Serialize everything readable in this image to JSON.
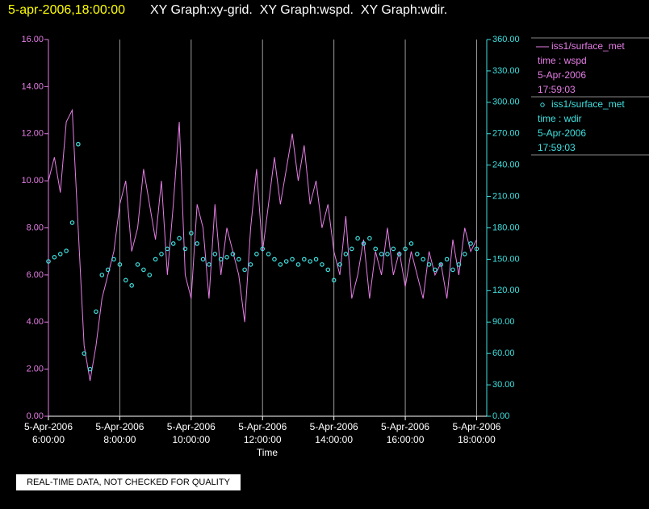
{
  "header": {
    "timestamp": "5-apr-2006,18:00:00",
    "graphs": "XY Graph:xy-grid.  XY Graph:wspd.  XY Graph:wdir."
  },
  "footer": "REAL-TIME DATA, NOT CHECKED FOR QUALITY",
  "chart_data": {
    "type": "line",
    "x_label": "Time",
    "x": [
      "06:00",
      "06:10",
      "06:20",
      "06:30",
      "06:40",
      "06:50",
      "07:00",
      "07:10",
      "07:20",
      "07:30",
      "07:40",
      "07:50",
      "08:00",
      "08:10",
      "08:20",
      "08:30",
      "08:40",
      "08:50",
      "09:00",
      "09:10",
      "09:20",
      "09:30",
      "09:40",
      "09:50",
      "10:00",
      "10:10",
      "10:20",
      "10:30",
      "10:40",
      "10:50",
      "11:00",
      "11:10",
      "11:20",
      "11:30",
      "11:40",
      "11:50",
      "12:00",
      "12:10",
      "12:20",
      "12:30",
      "12:40",
      "12:50",
      "13:00",
      "13:10",
      "13:20",
      "13:30",
      "13:40",
      "13:50",
      "14:00",
      "14:10",
      "14:20",
      "14:30",
      "14:40",
      "14:50",
      "15:00",
      "15:10",
      "15:20",
      "15:30",
      "15:40",
      "15:50",
      "16:00",
      "16:10",
      "16:20",
      "16:30",
      "16:40",
      "16:50",
      "17:00",
      "17:10",
      "17:20",
      "17:30",
      "17:40",
      "17:50",
      "18:00"
    ],
    "xlim": [
      "06:00",
      "18:17"
    ],
    "xticks": [
      {
        "value": "06:00",
        "label": "5-Apr-2006 6:00:00"
      },
      {
        "value": "08:00",
        "label": "5-Apr-2006 8:00:00"
      },
      {
        "value": "10:00",
        "label": "5-Apr-2006 10:00:00"
      },
      {
        "value": "12:00",
        "label": "5-Apr-2006 12:00:00"
      },
      {
        "value": "14:00",
        "label": "5-Apr-2006 14:00:00"
      },
      {
        "value": "16:00",
        "label": "5-Apr-2006 16:00:00"
      },
      {
        "value": "18:00",
        "label": "5-Apr-2006 18:00:00"
      }
    ],
    "ylim": [
      0,
      16
    ],
    "yticks": [
      {
        "value": 0,
        "label": "0.00"
      },
      {
        "value": 2,
        "label": "2.00"
      },
      {
        "value": 4,
        "label": "4.00"
      },
      {
        "value": 6,
        "label": "6.00"
      },
      {
        "value": 8,
        "label": "8.00"
      },
      {
        "value": 10,
        "label": "10.00"
      },
      {
        "value": 12,
        "label": "12.00"
      },
      {
        "value": 14,
        "label": "14.00"
      },
      {
        "value": 16,
        "label": "16.00"
      }
    ],
    "y2lim": [
      0,
      360
    ],
    "y2ticks": [
      {
        "value": 0,
        "label": "0.00"
      },
      {
        "value": 30,
        "label": "30.00"
      },
      {
        "value": 60,
        "label": "60.00"
      },
      {
        "value": 90,
        "label": "90.00"
      },
      {
        "value": 120,
        "label": "120.00"
      },
      {
        "value": 150,
        "label": "150.00"
      },
      {
        "value": 180,
        "label": "180.00"
      },
      {
        "value": 210,
        "label": "210.00"
      },
      {
        "value": 240,
        "label": "240.00"
      },
      {
        "value": 270,
        "label": "270.00"
      },
      {
        "value": 300,
        "label": "300.00"
      },
      {
        "value": 330,
        "label": "330.00"
      },
      {
        "value": 360,
        "label": "360.00"
      }
    ],
    "grid": "x",
    "series": [
      {
        "name": "iss1/surface_met",
        "legend_lines": [
          "time : wspd",
          "5-Apr-2006",
          "17:59:03"
        ],
        "color": "#e67ee6",
        "style": "line",
        "values": [
          10,
          11,
          9.5,
          12.5,
          13,
          8,
          3,
          1.5,
          3,
          5,
          6,
          7,
          9,
          10,
          7,
          8,
          10.5,
          9,
          7.5,
          10,
          6,
          9,
          12.5,
          6,
          5,
          9,
          8,
          5,
          9,
          6,
          8,
          7,
          6,
          4,
          8,
          10.5,
          7,
          9,
          11,
          9,
          10.5,
          12,
          10,
          11.5,
          9,
          10,
          8,
          9,
          7,
          6,
          8.5,
          5,
          6,
          7.5,
          5,
          7,
          6,
          8,
          6,
          7,
          5.5,
          7,
          6,
          5,
          7,
          6,
          6.5,
          5,
          7.5,
          6,
          8,
          7,
          7.5
        ]
      },
      {
        "name": "iss1/surface_met",
        "legend_lines": [
          "time : wdir",
          "5-Apr-2006",
          "17:59:03"
        ],
        "color": "#3fe0e0",
        "style": "markers",
        "axis": "y2",
        "values": [
          148,
          152,
          155,
          158,
          185,
          260,
          60,
          45,
          100,
          135,
          140,
          150,
          145,
          130,
          125,
          145,
          140,
          135,
          150,
          155,
          160,
          165,
          170,
          160,
          175,
          165,
          150,
          145,
          155,
          150,
          152,
          155,
          150,
          140,
          145,
          155,
          160,
          155,
          150,
          145,
          148,
          150,
          145,
          150,
          148,
          150,
          145,
          140,
          130,
          145,
          155,
          160,
          170,
          165,
          170,
          160,
          155,
          155,
          160,
          155,
          160,
          165,
          155,
          150,
          145,
          140,
          145,
          150,
          140,
          145,
          155,
          165,
          160
        ]
      }
    ]
  }
}
